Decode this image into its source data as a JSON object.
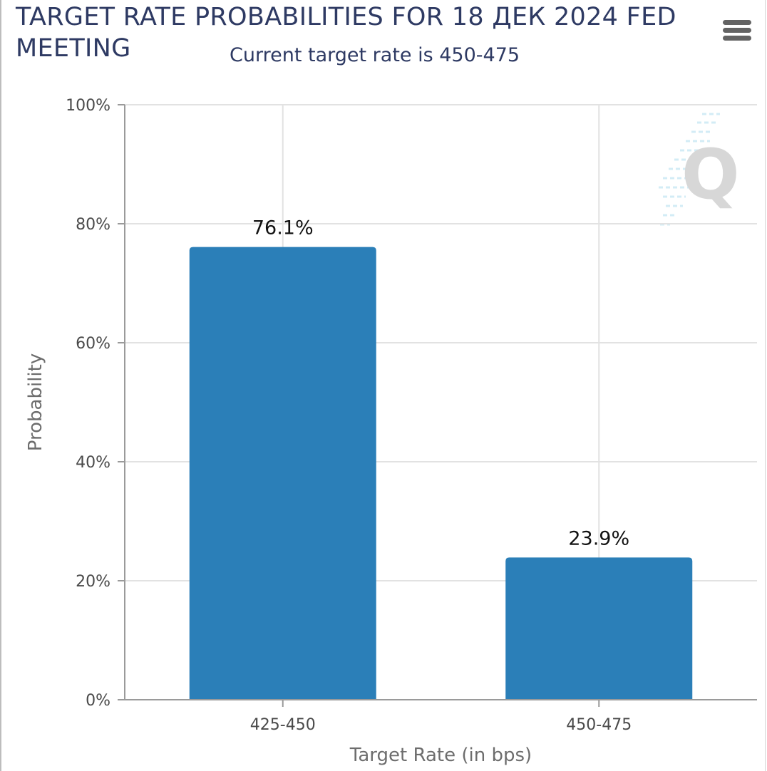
{
  "chart_data": {
    "type": "bar",
    "title": "TARGET RATE PROBABILITIES FOR 18 ДЕК 2024 FED MEETING",
    "subtitle": "Current target rate is 450-475",
    "xlabel": "Target Rate (in bps)",
    "ylabel": "Probability",
    "categories": [
      "425-450",
      "450-475"
    ],
    "values": [
      76.1,
      23.9
    ],
    "data_labels": [
      "76.1%",
      "23.9%"
    ],
    "ylim": [
      0,
      100
    ],
    "yticks": [
      0,
      20,
      40,
      60,
      80,
      100
    ],
    "ytick_labels": [
      "0%",
      "20%",
      "40%",
      "60%",
      "80%",
      "100%"
    ],
    "grid": true,
    "legend": "none",
    "bar_color": "#2b7fb8",
    "grid_color": "#e2e2e2",
    "axis_color": "#9a9a9a",
    "title_color": "#2e3a63"
  },
  "menu": {
    "icon": "hamburger-menu-icon"
  },
  "watermark": {
    "text": "Q",
    "icon": "quikstrike-watermark-icon"
  }
}
